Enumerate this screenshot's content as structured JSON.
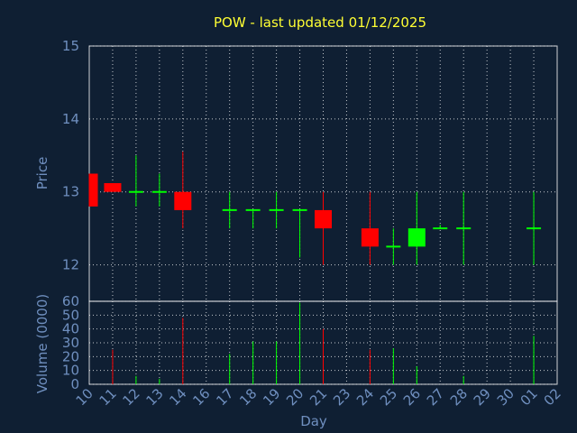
{
  "chart_data": [
    {
      "type": "candlestick",
      "title": "POW - last updated 01/12/2025",
      "xlabel": "",
      "ylabel": "Price",
      "ylim": [
        11.5,
        15
      ],
      "yticks": [
        12,
        13,
        14,
        15
      ],
      "grid": true,
      "x": [
        "10",
        "11",
        "12",
        "13",
        "14",
        "16",
        "17",
        "18",
        "19",
        "20",
        "21",
        "23",
        "24",
        "25",
        "26",
        "27",
        "28",
        "29",
        "30",
        "01",
        "02"
      ],
      "candles": [
        {
          "x": "10",
          "open": 13.25,
          "close": 12.8,
          "high": 13.25,
          "low": 12.8
        },
        {
          "x": "11",
          "open": 13.12,
          "close": 13.0,
          "high": 13.12,
          "low": 13.0
        },
        {
          "x": "12",
          "open": 13.0,
          "close": 13.0,
          "high": 13.5,
          "low": 12.8
        },
        {
          "x": "13",
          "open": 13.0,
          "close": 13.0,
          "high": 13.25,
          "low": 12.8
        },
        {
          "x": "14",
          "open": 13.0,
          "close": 12.75,
          "high": 13.55,
          "low": 12.5
        },
        {
          "x": "17",
          "open": 12.75,
          "close": 12.75,
          "high": 13.0,
          "low": 12.5
        },
        {
          "x": "18",
          "open": 12.75,
          "close": 12.75,
          "high": 12.75,
          "low": 12.5
        },
        {
          "x": "19",
          "open": 12.75,
          "close": 12.75,
          "high": 13.0,
          "low": 12.5
        },
        {
          "x": "20",
          "open": 12.75,
          "close": 12.75,
          "high": 12.75,
          "low": 12.1
        },
        {
          "x": "21",
          "open": 12.75,
          "close": 12.5,
          "high": 13.0,
          "low": 12.0
        },
        {
          "x": "24",
          "open": 12.5,
          "close": 12.25,
          "high": 13.0,
          "low": 12.0
        },
        {
          "x": "25",
          "open": 12.25,
          "close": 12.25,
          "high": 12.5,
          "low": 12.0
        },
        {
          "x": "26",
          "open": 12.25,
          "close": 12.5,
          "high": 13.0,
          "low": 12.0
        },
        {
          "x": "27",
          "open": 12.5,
          "close": 12.5,
          "high": 12.55,
          "low": 12.5
        },
        {
          "x": "28",
          "open": 12.5,
          "close": 12.5,
          "high": 13.0,
          "low": 12.0
        },
        {
          "x": "01",
          "open": 12.5,
          "close": 12.5,
          "high": 13.0,
          "low": 12.0
        }
      ]
    },
    {
      "type": "bar",
      "title": "",
      "xlabel": "Day",
      "ylabel": "Volume (0000)",
      "ylim": [
        0,
        60
      ],
      "yticks": [
        0,
        10,
        20,
        30,
        40,
        50,
        60
      ],
      "grid": true,
      "categories": [
        "10",
        "11",
        "12",
        "13",
        "14",
        "16",
        "17",
        "18",
        "19",
        "20",
        "21",
        "23",
        "24",
        "25",
        "26",
        "27",
        "28",
        "29",
        "30",
        "01",
        "02"
      ],
      "values": [
        {
          "x": "11",
          "value": 25,
          "color": "red"
        },
        {
          "x": "12",
          "value": 6,
          "color": "green"
        },
        {
          "x": "13",
          "value": 4,
          "color": "green"
        },
        {
          "x": "14",
          "value": 48,
          "color": "red"
        },
        {
          "x": "17",
          "value": 22,
          "color": "green"
        },
        {
          "x": "18",
          "value": 31,
          "color": "green"
        },
        {
          "x": "19",
          "value": 31,
          "color": "green"
        },
        {
          "x": "20",
          "value": 59,
          "color": "green"
        },
        {
          "x": "21",
          "value": 40,
          "color": "red"
        },
        {
          "x": "24",
          "value": 25,
          "color": "red"
        },
        {
          "x": "25",
          "value": 26,
          "color": "green"
        },
        {
          "x": "26",
          "value": 13,
          "color": "green"
        },
        {
          "x": "28",
          "value": 6,
          "color": "green"
        },
        {
          "x": "01",
          "value": 35,
          "color": "green"
        }
      ]
    }
  ],
  "colors": {
    "background": "#0f1f33",
    "plot_frame": "#ffffff",
    "grid": "#ffffff",
    "title": "#ffff33",
    "axis_text": "#6f8fbf",
    "up": "#00ff00",
    "down": "#ff0000"
  }
}
